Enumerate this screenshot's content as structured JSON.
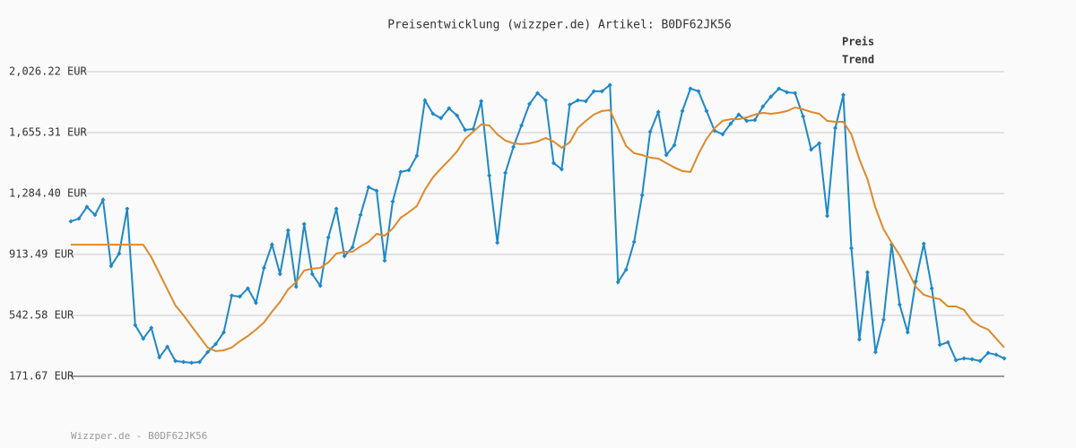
{
  "chart_data": {
    "type": "line",
    "title": "Preisentwicklung (wizzper.de) Artikel: B0DF62JK56",
    "footer": "Wizzper.de - B0DF62JK56",
    "ylim": [
      171.67,
      2026.22
    ],
    "yticks": [
      {
        "value": 171.67,
        "label": "171.67 EUR"
      },
      {
        "value": 542.58,
        "label": "542.58 EUR"
      },
      {
        "value": 913.49,
        "label": "913.49 EUR"
      },
      {
        "value": 1284.4,
        "label": "1,284.40 EUR"
      },
      {
        "value": 1655.31,
        "label": "1,655.31 EUR"
      },
      {
        "value": 2026.22,
        "label": "2,026.22 EUR"
      }
    ],
    "grid": true,
    "legend": "top-right",
    "series": [
      {
        "name": "Preis",
        "color": "#1f88c6",
        "markers": true,
        "values": [
          1115,
          1132,
          1203,
          1154,
          1246,
          843,
          919,
          1192,
          483,
          401,
          467,
          287,
          352,
          265,
          259,
          254,
          259,
          319,
          368,
          439,
          663,
          657,
          707,
          619,
          832,
          974,
          794,
          1061,
          717,
          1099,
          794,
          723,
          1017,
          1192,
          903,
          957,
          1154,
          1323,
          1301,
          876,
          1236,
          1416,
          1427,
          1514,
          1852,
          1770,
          1743,
          1803,
          1759,
          1672,
          1677,
          1847,
          1394,
          985,
          1410,
          1568,
          1699,
          1830,
          1896,
          1852,
          1470,
          1432,
          1825,
          1852,
          1847,
          1907,
          1907,
          1945,
          745,
          821,
          990,
          1274,
          1661,
          1781,
          1519,
          1579,
          1787,
          1923,
          1907,
          1787,
          1667,
          1645,
          1710,
          1765,
          1727,
          1732,
          1814,
          1874,
          1923,
          1901,
          1896,
          1754,
          1552,
          1590,
          1148,
          1683,
          1885,
          952,
          396,
          805,
          319,
          516,
          974,
          608,
          439,
          750,
          979,
          707,
          363,
          379,
          270,
          281,
          276,
          265,
          314,
          303,
          281
        ]
      },
      {
        "name": "Trend",
        "color": "#dd8a2a",
        "markers": false,
        "values": [
          973,
          973,
          973,
          973,
          973,
          973,
          973,
          973,
          973,
          973,
          897,
          799,
          701,
          603,
          543,
          477,
          412,
          347,
          325,
          330,
          347,
          385,
          417,
          456,
          499,
          565,
          625,
          701,
          745,
          816,
          827,
          832,
          865,
          919,
          930,
          930,
          963,
          990,
          1039,
          1028,
          1072,
          1137,
          1170,
          1208,
          1307,
          1383,
          1437,
          1487,
          1541,
          1617,
          1661,
          1705,
          1699,
          1645,
          1607,
          1590,
          1585,
          1590,
          1601,
          1623,
          1601,
          1563,
          1596,
          1683,
          1727,
          1765,
          1787,
          1792,
          1683,
          1574,
          1530,
          1519,
          1503,
          1497,
          1470,
          1443,
          1421,
          1416,
          1525,
          1617,
          1683,
          1727,
          1737,
          1737,
          1748,
          1765,
          1776,
          1770,
          1776,
          1787,
          1808,
          1797,
          1781,
          1770,
          1727,
          1721,
          1721,
          1645,
          1492,
          1372,
          1197,
          1067,
          985,
          908,
          816,
          717,
          668,
          652,
          641,
          597,
          597,
          576,
          510,
          477,
          456,
          401,
          347
        ]
      }
    ]
  }
}
